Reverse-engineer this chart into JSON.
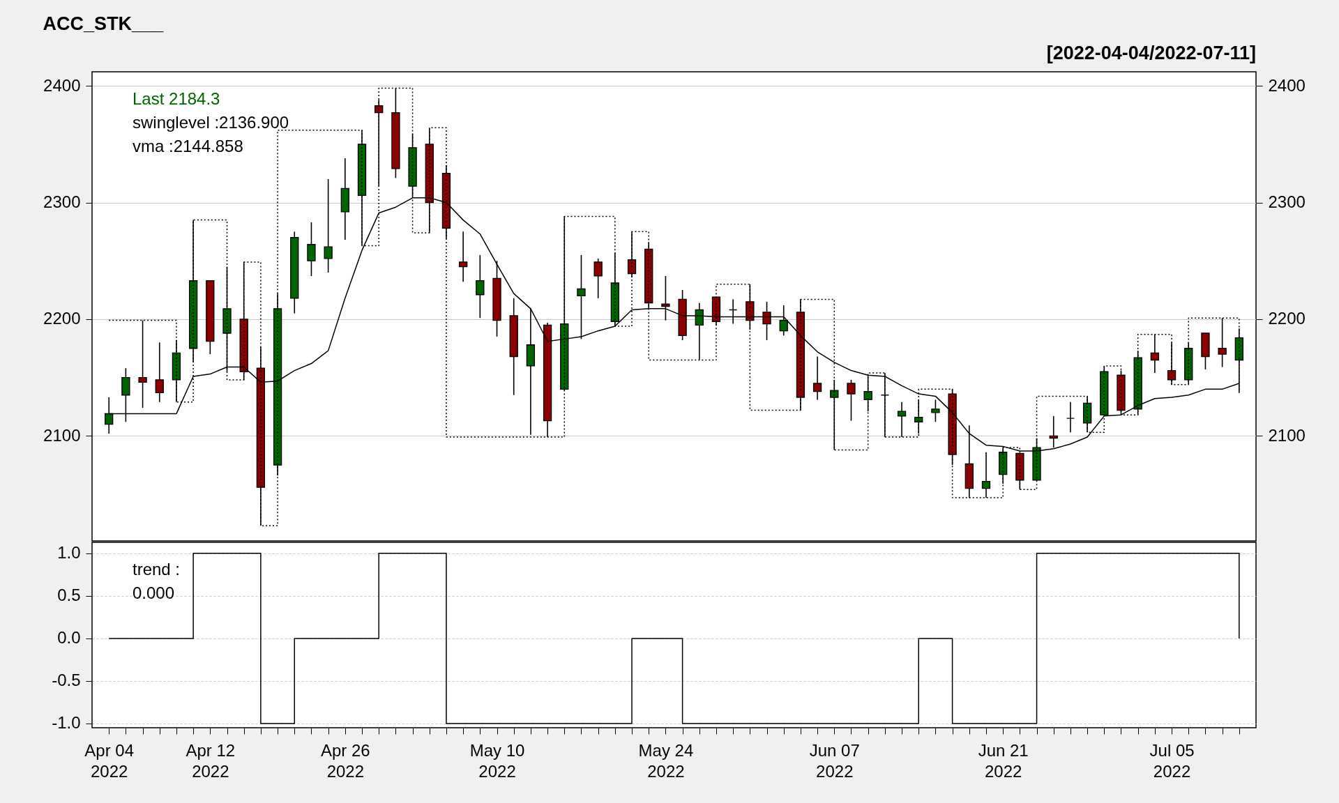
{
  "chart_data": [
    {
      "type": "candlestick",
      "title": "ACC_STK___",
      "subtitle": "[2022-04-04/2022-07-11]",
      "categories": [
        null,
        null,
        null,
        null,
        null,
        null,
        null,
        null,
        null,
        null,
        null,
        null,
        null,
        null,
        null,
        null,
        null,
        null,
        null,
        null,
        null,
        null,
        null,
        null,
        null,
        null,
        null,
        null,
        null,
        null,
        null,
        null,
        null,
        null,
        null,
        null,
        null,
        null,
        null,
        null,
        null,
        null,
        null,
        null,
        null,
        null,
        null,
        null,
        null,
        null,
        null,
        null,
        null,
        null,
        null,
        null,
        null,
        null,
        null,
        null,
        null,
        null,
        null,
        null,
        null,
        null,
        null,
        null
      ],
      "ohlc": [
        [
          2110,
          2133,
          2102,
          2119
        ],
        [
          2135,
          2158,
          2112,
          2150
        ],
        [
          2150,
          2199,
          2124,
          2146
        ],
        [
          2148,
          2180,
          2129,
          2137
        ],
        [
          2148,
          2182,
          2129,
          2171
        ],
        [
          2175,
          2285,
          2163,
          2233
        ],
        [
          2233,
          2233,
          2170,
          2181
        ],
        [
          2188,
          2245,
          2155,
          2209
        ],
        [
          2200,
          2249,
          2148,
          2155
        ],
        [
          2158,
          2176,
          2023,
          2056
        ],
        [
          2075,
          2222,
          2066,
          2209
        ],
        [
          2218,
          2275,
          2205,
          2270
        ],
        [
          2250,
          2283,
          2237,
          2264
        ],
        [
          2252,
          2320,
          2240,
          2262
        ],
        [
          2292,
          2338,
          2268,
          2312
        ],
        [
          2306,
          2362,
          2263,
          2350
        ],
        [
          2383,
          2388,
          2314,
          2377
        ],
        [
          2377,
          2398,
          2321,
          2329
        ],
        [
          2314,
          2359,
          2305,
          2347
        ],
        [
          2350,
          2364,
          2274,
          2300
        ],
        [
          2325,
          2332,
          2269,
          2278
        ],
        [
          2249,
          2275,
          2232,
          2245
        ],
        [
          2221,
          2255,
          2201,
          2233
        ],
        [
          2235,
          2250,
          2185,
          2199
        ],
        [
          2203,
          2218,
          2135,
          2168
        ],
        [
          2160,
          2209,
          2101,
          2178
        ],
        [
          2195,
          2197,
          2099,
          2113
        ],
        [
          2140,
          2288,
          2139,
          2196
        ],
        [
          2220,
          2255,
          2183,
          2226
        ],
        [
          2249,
          2252,
          2218,
          2237
        ],
        [
          2198,
          2257,
          2194,
          2231
        ],
        [
          2251,
          2275,
          2236,
          2239
        ],
        [
          2260,
          2266,
          2209,
          2214
        ],
        [
          2213,
          2237,
          2199,
          2211
        ],
        [
          2217,
          2225,
          2182,
          2186
        ],
        [
          2195,
          2214,
          2165,
          2208
        ],
        [
          2219,
          2219,
          2195,
          2198
        ],
        [
          2208,
          2217,
          2196,
          2208
        ],
        [
          2215,
          2230,
          2191,
          2199
        ],
        [
          2206,
          2215,
          2182,
          2196
        ],
        [
          2190,
          2212,
          2186,
          2199
        ],
        [
          2206,
          2217,
          2122,
          2133
        ],
        [
          2145,
          2168,
          2131,
          2138
        ],
        [
          2133,
          2148,
          2088,
          2139
        ],
        [
          2145,
          2148,
          2113,
          2136
        ],
        [
          2131,
          2152,
          2121,
          2138
        ],
        [
          2135,
          2154,
          2099,
          2135
        ],
        [
          2117,
          2129,
          2099,
          2121
        ],
        [
          2112,
          2131,
          2102,
          2116
        ],
        [
          2120,
          2131,
          2112,
          2123
        ],
        [
          2136,
          2140,
          2075,
          2084
        ],
        [
          2076,
          2109,
          2047,
          2055
        ],
        [
          2055,
          2086,
          2047,
          2061
        ],
        [
          2067,
          2090,
          2059,
          2086
        ],
        [
          2085,
          2085,
          2054,
          2062
        ],
        [
          2062,
          2098,
          2062,
          2090
        ],
        [
          2100,
          2117,
          2090,
          2098
        ],
        [
          2115,
          2129,
          2103,
          2115
        ],
        [
          2111,
          2134,
          2103,
          2128
        ],
        [
          2118,
          2160,
          2117,
          2155
        ],
        [
          2152,
          2156,
          2118,
          2122
        ],
        [
          2123,
          2173,
          2118,
          2167
        ],
        [
          2171,
          2187,
          2154,
          2165
        ],
        [
          2156,
          2180,
          2144,
          2148
        ],
        [
          2148,
          2180,
          2144,
          2175
        ],
        [
          2188,
          2188,
          2157,
          2168
        ],
        [
          2175,
          2201,
          2159,
          2170
        ],
        [
          2165,
          2192,
          2137,
          2184
        ]
      ],
      "colors": [
        "#006400",
        "#006400",
        "#8b0000",
        "#8b0000",
        "#006400",
        "#006400",
        "#8b0000",
        "#006400",
        "#8b0000",
        "#8b0000",
        "#006400",
        "#006400",
        "#006400",
        "#006400",
        "#006400",
        "#006400",
        "#8b0000",
        "#8b0000",
        "#006400",
        "#8b0000",
        "#8b0000",
        "#8b0000",
        "#006400",
        "#8b0000",
        "#8b0000",
        "#006400",
        "#8b0000",
        "#006400",
        "#006400",
        "#8b0000",
        "#006400",
        "#8b0000",
        "#8b0000",
        "#8b0000",
        "#8b0000",
        "#006400",
        "#8b0000",
        "#000000",
        "#8b0000",
        "#8b0000",
        "#006400",
        "#8b0000",
        "#8b0000",
        "#006400",
        "#8b0000",
        "#006400",
        "#000000",
        "#006400",
        "#006400",
        "#006400",
        "#8b0000",
        "#8b0000",
        "#006400",
        "#006400",
        "#8b0000",
        "#006400",
        "#8b0000",
        "#000000",
        "#006400",
        "#006400",
        "#8b0000",
        "#006400",
        "#8b0000",
        "#8b0000",
        "#006400",
        "#8b0000",
        "#8b0000",
        "#006400"
      ],
      "series": [
        {
          "type": "step",
          "color": "#000000",
          "line_style": "dotted",
          "values": [
            2199,
            2199,
            2199,
            2199,
            2129,
            2285,
            2285,
            2148,
            2249,
            2023,
            2362,
            2362,
            2362,
            2362,
            2362,
            2263,
            2398,
            2398,
            2274,
            2364,
            2099,
            2099,
            2099,
            2099,
            2099,
            2099,
            2099,
            2288,
            2288,
            2288,
            2194,
            2275,
            2165,
            2165,
            2165,
            2165,
            2230,
            2230,
            2122,
            2122,
            2122,
            2217,
            2217,
            2088,
            2088,
            2154,
            2099,
            2099,
            2140,
            2140,
            2047,
            2047,
            2047,
            2090,
            2054,
            2134,
            2134,
            2134,
            2103,
            2160,
            2118,
            2187,
            2187,
            2144,
            2201,
            2201,
            2201,
            2137
          ]
        },
        {
          "type": "line",
          "color": "#000000",
          "line_style": "solid",
          "values": [
            2119,
            2119,
            2119,
            2119,
            2119,
            2151,
            2153,
            2159,
            2159,
            2146,
            2147,
            2156,
            2162,
            2173,
            2218,
            2259,
            2291,
            2296,
            2304,
            2304,
            2300,
            2285,
            2273,
            2247,
            2222,
            2209,
            2181,
            2183,
            2185,
            2190,
            2194,
            2208,
            2209,
            2209,
            2203,
            2203,
            2202,
            2202,
            2202,
            2202,
            2202,
            2186,
            2172,
            2163,
            2156,
            2152,
            2151,
            2143,
            2136,
            2134,
            2120,
            2102,
            2092,
            2091,
            2087,
            2087,
            2089,
            2093,
            2099,
            2117,
            2118,
            2126,
            2132,
            2133,
            2135,
            2140,
            2140,
            2145
          ]
        }
      ],
      "annotations": [
        "Last 2184.3",
        "swinglevel :2136.900",
        "vma :2144.858"
      ],
      "ylim": [
        2010,
        2412
      ],
      "yticks": [
        2100,
        2200,
        2300,
        2400
      ],
      "y2lim": [
        2010,
        2412
      ],
      "y2ticks": [
        2100,
        2200,
        2300,
        2400
      ],
      "grid": "y",
      "tick_labels": "y"
    },
    {
      "type": "step",
      "categories": [
        "Apr 04\n2022",
        null,
        null,
        null,
        null,
        null,
        "Apr 12\n2022",
        null,
        null,
        null,
        null,
        null,
        null,
        null,
        "Apr 26\n2022",
        null,
        null,
        null,
        null,
        null,
        null,
        null,
        null,
        "May 10\n2022",
        null,
        null,
        null,
        null,
        null,
        null,
        null,
        null,
        null,
        "May 24\n2022",
        null,
        null,
        null,
        null,
        null,
        null,
        null,
        null,
        null,
        "Jun 07\n2022",
        null,
        null,
        null,
        null,
        null,
        null,
        null,
        null,
        null,
        "Jun 21\n2022",
        null,
        null,
        null,
        null,
        null,
        null,
        null,
        null,
        null,
        "Jul 05\n2022",
        null,
        null,
        null,
        null
      ],
      "series": [
        {
          "color": "#000000",
          "line_style": "solid",
          "values": [
            0,
            0,
            0,
            0,
            0,
            1,
            1,
            1,
            1,
            -1,
            -1,
            0,
            0,
            0,
            0,
            0,
            1,
            1,
            1,
            1,
            -1,
            -1,
            -1,
            -1,
            -1,
            -1,
            -1,
            -1,
            -1,
            -1,
            -1,
            0,
            0,
            0,
            -1,
            -1,
            -1,
            -1,
            -1,
            -1,
            -1,
            -1,
            -1,
            -1,
            -1,
            -1,
            -1,
            -1,
            0,
            0,
            -1,
            -1,
            -1,
            -1,
            -1,
            1,
            1,
            1,
            1,
            1,
            1,
            1,
            1,
            1,
            1,
            1,
            1,
            0
          ]
        }
      ],
      "annotations": [
        "trend :",
        "0.000"
      ],
      "ylim": [
        -1.05,
        1.13
      ],
      "yticks": [
        {
          "value": 1,
          "label": "1.0"
        },
        {
          "value": 0.5,
          "label": "0.5"
        },
        {
          "value": 0,
          "label": "0.0"
        },
        {
          "value": -0.5,
          "label": "-0.5"
        },
        {
          "value": -1,
          "label": "-1.0"
        }
      ],
      "grid": "y"
    }
  ]
}
